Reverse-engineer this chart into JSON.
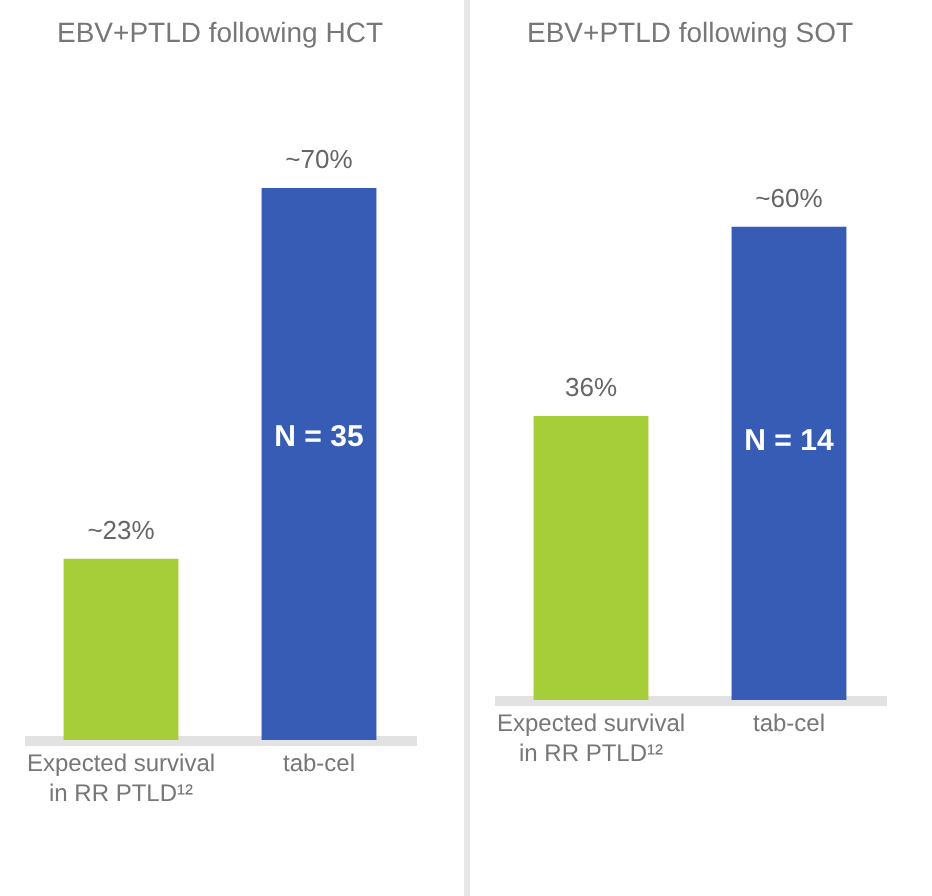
{
  "chart_data": [
    {
      "type": "bar",
      "title": "EBV+PTLD following HCT",
      "categories": [
        "Expected survival in RR PTLD¹²",
        "tab-cel"
      ],
      "values": [
        23,
        70
      ],
      "colors": [
        "#a6ce39",
        "#365cb5"
      ],
      "value_labels": [
        "~23%",
        "~70%"
      ],
      "annotations": [
        "N = 35"
      ]
    },
    {
      "type": "bar",
      "title": "EBV+PTLD following SOT",
      "categories": [
        "Expected survival in RR PTLD¹²",
        "tab-cel"
      ],
      "values": [
        36,
        60
      ],
      "colors": [
        "#a6ce39",
        "#365cb5"
      ],
      "value_labels": [
        "36%",
        "~60%"
      ],
      "annotations": [
        "N = 14"
      ]
    }
  ]
}
